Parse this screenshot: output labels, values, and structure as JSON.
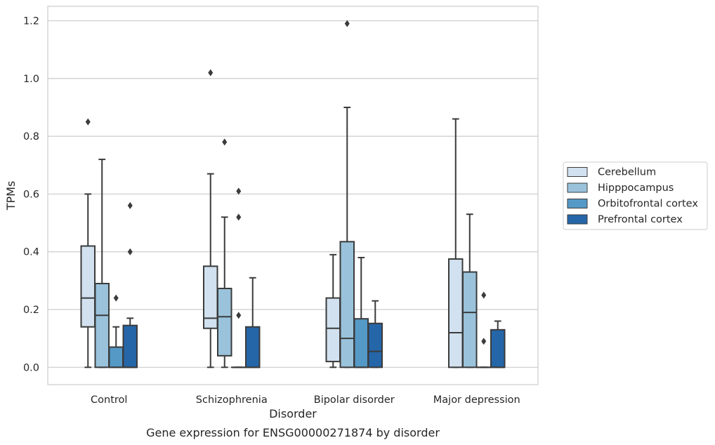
{
  "chart_data": {
    "type": "box",
    "title": "",
    "caption": "Gene expression for ENSG00000271874 by disorder",
    "xlabel": "Disorder",
    "ylabel": "TPMs",
    "ylim": [
      -0.06,
      1.25
    ],
    "yticks": [
      0.0,
      0.2,
      0.4,
      0.6,
      0.8,
      1.0,
      1.2
    ],
    "ytick_labels": [
      "0.0",
      "0.2",
      "0.4",
      "0.6",
      "0.8",
      "1.0",
      "1.2"
    ],
    "grid": "horizontal",
    "legend_position": "right",
    "categories": [
      "Control",
      "Schizophrenia",
      "Bipolar disorder",
      "Major depression"
    ],
    "series": [
      {
        "name": "Cerebellum",
        "color": "#d1e1ef",
        "boxes": [
          {
            "whisker_low": 0.0,
            "q1": 0.14,
            "median": 0.24,
            "q3": 0.42,
            "whisker_high": 0.6,
            "outliers": [
              0.85
            ]
          },
          {
            "whisker_low": 0.0,
            "q1": 0.135,
            "median": 0.17,
            "q3": 0.35,
            "whisker_high": 0.67,
            "outliers": [
              1.02
            ]
          },
          {
            "whisker_low": 0.0,
            "q1": 0.02,
            "median": 0.135,
            "q3": 0.24,
            "whisker_high": 0.39,
            "outliers": []
          },
          {
            "whisker_low": 0.0,
            "q1": 0.0,
            "median": 0.12,
            "q3": 0.375,
            "whisker_high": 0.86,
            "outliers": []
          }
        ]
      },
      {
        "name": "Hipppocampus",
        "color": "#9ac3db",
        "boxes": [
          {
            "whisker_low": 0.0,
            "q1": 0.0,
            "median": 0.18,
            "q3": 0.29,
            "whisker_high": 0.72,
            "outliers": []
          },
          {
            "whisker_low": 0.0,
            "q1": 0.04,
            "median": 0.175,
            "q3": 0.273,
            "whisker_high": 0.52,
            "outliers": [
              0.78
            ]
          },
          {
            "whisker_low": 0.0,
            "q1": 0.0,
            "median": 0.1,
            "q3": 0.435,
            "whisker_high": 0.9,
            "outliers": [
              1.19
            ]
          },
          {
            "whisker_low": 0.0,
            "q1": 0.0,
            "median": 0.19,
            "q3": 0.33,
            "whisker_high": 0.53,
            "outliers": []
          }
        ]
      },
      {
        "name": "Orbitofrontal cortex",
        "color": "#5599c7",
        "boxes": [
          {
            "whisker_low": 0.0,
            "q1": 0.0,
            "median": 0.0,
            "q3": 0.07,
            "whisker_high": 0.14,
            "outliers": [
              0.24
            ]
          },
          {
            "whisker_low": 0.0,
            "q1": 0.0,
            "median": 0.0,
            "q3": 0.0,
            "whisker_high": 0.0,
            "outliers": [
              0.18,
              0.52,
              0.61
            ]
          },
          {
            "whisker_low": 0.0,
            "q1": 0.0,
            "median": 0.0,
            "q3": 0.168,
            "whisker_high": 0.38,
            "outliers": []
          },
          {
            "whisker_low": 0.0,
            "q1": 0.0,
            "median": 0.0,
            "q3": 0.0,
            "whisker_high": 0.0,
            "outliers": [
              0.09,
              0.25
            ]
          }
        ]
      },
      {
        "name": "Prefrontal cortex",
        "color": "#2566a8",
        "boxes": [
          {
            "whisker_low": 0.0,
            "q1": 0.0,
            "median": 0.0,
            "q3": 0.145,
            "whisker_high": 0.17,
            "outliers": [
              0.4,
              0.56
            ]
          },
          {
            "whisker_low": 0.0,
            "q1": 0.0,
            "median": 0.0,
            "q3": 0.14,
            "whisker_high": 0.31,
            "outliers": []
          },
          {
            "whisker_low": 0.0,
            "q1": 0.0,
            "median": 0.055,
            "q3": 0.152,
            "whisker_high": 0.23,
            "outliers": []
          },
          {
            "whisker_low": 0.0,
            "q1": 0.0,
            "median": 0.0,
            "q3": 0.13,
            "whisker_high": 0.16,
            "outliers": []
          }
        ]
      }
    ]
  }
}
